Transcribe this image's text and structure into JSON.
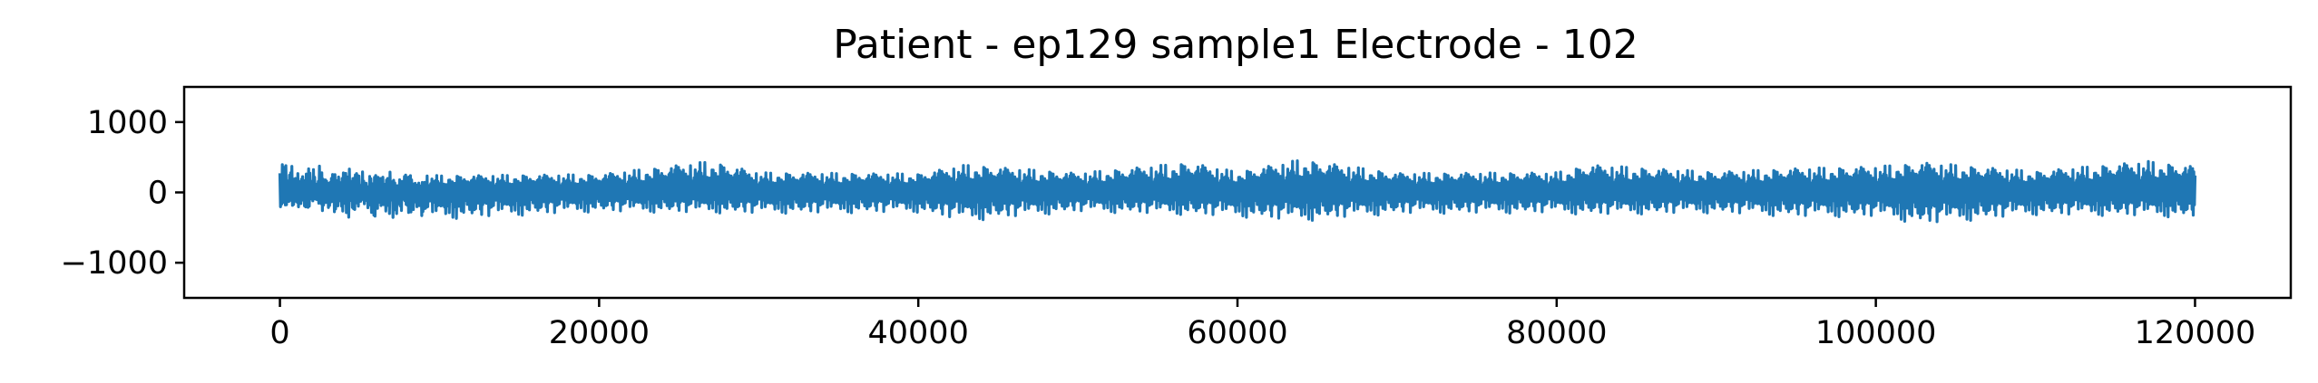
{
  "chart_data": {
    "type": "line",
    "title": "Patient - ep129 sample1 Electrode - 102",
    "xlabel": "",
    "ylabel": "",
    "xlim": [
      -6000,
      126000
    ],
    "ylim": [
      -1500,
      1500
    ],
    "xticks": [
      {
        "value": 0,
        "label": "0"
      },
      {
        "value": 20000,
        "label": "20000"
      },
      {
        "value": 40000,
        "label": "40000"
      },
      {
        "value": 60000,
        "label": "60000"
      },
      {
        "value": 80000,
        "label": "80000"
      },
      {
        "value": 100000,
        "label": "100000"
      },
      {
        "value": 120000,
        "label": "120000"
      }
    ],
    "yticks": [
      {
        "value": 1000,
        "label": "1000"
      },
      {
        "value": 0,
        "label": "0"
      },
      {
        "value": -1000,
        "label": "−1000"
      }
    ],
    "grid": false,
    "legend": "none",
    "series_color": "#1f77b4",
    "x_range": [
      0,
      120000
    ],
    "envelope": {
      "x": [
        0,
        10000,
        20000,
        27000,
        30000,
        40000,
        43000,
        50000,
        57000,
        60000,
        64000,
        70000,
        80000,
        82000,
        90000,
        95000,
        100000,
        103000,
        110000,
        117000,
        120000
      ],
      "upper": [
        490,
        280,
        300,
        520,
        330,
        310,
        460,
        320,
        500,
        340,
        550,
        320,
        330,
        460,
        340,
        400,
        430,
        500,
        350,
        520,
        430
      ],
      "lower": [
        -320,
        -420,
        -300,
        -320,
        -330,
        -310,
        -450,
        -300,
        -350,
        -380,
        -450,
        -330,
        -320,
        -350,
        -320,
        -380,
        -380,
        -500,
        -350,
        -370,
        -400
      ]
    }
  }
}
